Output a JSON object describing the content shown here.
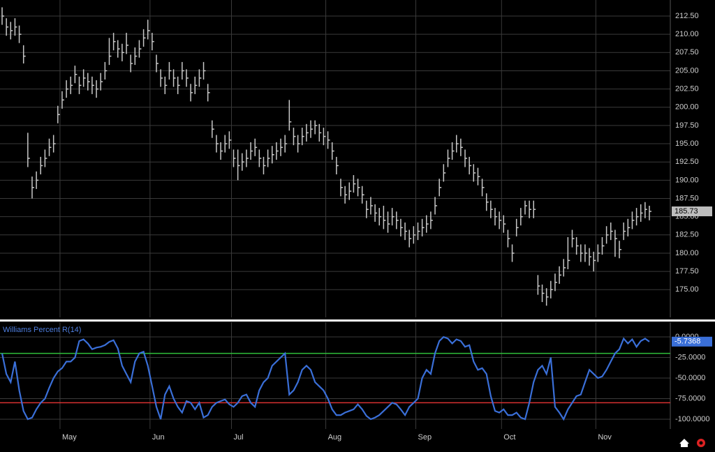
{
  "chart_data": [
    {
      "type": "ohlc",
      "color": "#c8c8c8",
      "categories": [
        null,
        null,
        null,
        null,
        null,
        null,
        null,
        null,
        null,
        null,
        null,
        null,
        null,
        null,
        "May",
        null,
        null,
        null,
        null,
        null,
        null,
        null,
        null,
        null,
        null,
        null,
        null,
        null,
        null,
        null,
        null,
        null,
        null,
        null,
        null,
        "Jun",
        null,
        null,
        null,
        null,
        null,
        null,
        null,
        null,
        null,
        null,
        null,
        null,
        null,
        null,
        null,
        null,
        null,
        null,
        "Jul",
        null,
        null,
        null,
        null,
        null,
        null,
        null,
        null,
        null,
        null,
        null,
        null,
        null,
        null,
        null,
        null,
        null,
        null,
        null,
        null,
        null,
        "Aug",
        null,
        null,
        null,
        null,
        null,
        null,
        null,
        null,
        null,
        null,
        null,
        null,
        null,
        null,
        null,
        null,
        null,
        null,
        null,
        null,
        "Sep",
        null,
        null,
        null,
        null,
        null,
        null,
        null,
        null,
        null,
        null,
        null,
        null,
        null,
        null,
        null,
        null,
        null,
        null,
        null,
        "Oct",
        null,
        null,
        null,
        null,
        null,
        null,
        null,
        null,
        null,
        null,
        null,
        null,
        null,
        null,
        null,
        null,
        null,
        null,
        null,
        null,
        null,
        "Nov",
        null,
        null,
        null,
        null,
        null,
        null,
        null,
        null,
        null,
        null,
        null,
        null
      ],
      "high": [
        213.7,
        212.2,
        211.7,
        212.2,
        211.2,
        208.5,
        196.5,
        190.5,
        191.2,
        193.2,
        194.2,
        195.7,
        196.2,
        200.2,
        202.2,
        203.7,
        204.2,
        205.7,
        204.2,
        205.2,
        204.7,
        204.2,
        203.7,
        204.7,
        206.2,
        209.5,
        210.2,
        209.2,
        208.7,
        210.2,
        207.2,
        208.2,
        209.2,
        210.7,
        212,
        210.2,
        207.2,
        205.2,
        204.2,
        206.2,
        205.2,
        204.2,
        206.2,
        205.2,
        203.2,
        204.2,
        205.2,
        206.2,
        203.2,
        198.2,
        196.2,
        195.2,
        196.2,
        196.7,
        194.2,
        194.2,
        193.7,
        194.2,
        195.2,
        195.7,
        194.2,
        193.2,
        194.2,
        194.7,
        195.2,
        195.7,
        196.2,
        201,
        197.2,
        196.2,
        197.2,
        197.7,
        198.2,
        198.2,
        197.7,
        197.2,
        196.7,
        195.2,
        193.2,
        190.2,
        189.2,
        189.7,
        190.7,
        190.2,
        189.2,
        187.2,
        187.7,
        186.7,
        186.2,
        186.5,
        185.7,
        186.2,
        185.7,
        184.7,
        184.2,
        183.2,
        183.7,
        184.2,
        184.7,
        185.2,
        185.7,
        187.7,
        190.2,
        192.2,
        194.2,
        195.2,
        196.2,
        195.7,
        194.2,
        193.2,
        192.2,
        191.7,
        190.2,
        188.2,
        187.2,
        186.2,
        185.7,
        185.2,
        183.2,
        181.2,
        184.7,
        186.2,
        187.2,
        187.2,
        187.2,
        177,
        175.7,
        175.2,
        176.2,
        177.2,
        178.2,
        179.2,
        182.2,
        183.2,
        182.2,
        181.2,
        181.2,
        180.7,
        180.2,
        181.2,
        182.2,
        183.7,
        184.2,
        183.2,
        181.7,
        184.2,
        184.7,
        185.7,
        186.2,
        186.7,
        187,
        186.5
      ],
      "low": [
        211.3,
        209.8,
        209.3,
        209.8,
        208.8,
        206,
        191.8,
        187.5,
        188.8,
        190.8,
        191.8,
        193.3,
        193.8,
        197.8,
        199.8,
        201.3,
        201.8,
        203.3,
        201.8,
        202.8,
        202.3,
        201.8,
        201.3,
        202.3,
        203.8,
        205.8,
        207.8,
        206.8,
        206.3,
        207.3,
        204.8,
        205.8,
        206.8,
        208.3,
        209.3,
        207.8,
        204.8,
        202.8,
        201.8,
        203.8,
        202.8,
        201.8,
        203.8,
        202.8,
        200.8,
        201.8,
        202.8,
        203.8,
        200.8,
        195.8,
        193.8,
        192.8,
        193.8,
        194.3,
        191.8,
        190,
        191.3,
        191.8,
        192.8,
        193.3,
        191.8,
        190.8,
        191.8,
        192.3,
        192.8,
        193.3,
        193.8,
        196.8,
        194.8,
        193.8,
        194.8,
        195.3,
        195.8,
        196.3,
        195.3,
        194.8,
        194.3,
        192.8,
        190.8,
        187.8,
        186.8,
        187.3,
        188.3,
        187.8,
        186.8,
        184.8,
        185.3,
        184.3,
        183.8,
        183.3,
        182.8,
        183.8,
        183.3,
        182.3,
        181.8,
        180.8,
        181.3,
        181.8,
        182.3,
        182.8,
        183.3,
        185.3,
        187.8,
        189.8,
        191.8,
        192.8,
        193.8,
        193.3,
        191.8,
        190.8,
        189.8,
        189.3,
        187.8,
        185.8,
        184.8,
        183.8,
        183.3,
        182.8,
        180.8,
        178.8,
        182.3,
        183.8,
        185.3,
        184.8,
        184.8,
        174.3,
        173.3,
        172.8,
        173.8,
        174.8,
        175.8,
        176.8,
        177.8,
        180.8,
        179.8,
        178.8,
        178.8,
        178.3,
        177.5,
        178.8,
        179.8,
        181.3,
        181.8,
        179.5,
        179.3,
        181.8,
        182.3,
        183.3,
        183.8,
        184.3,
        184.8,
        184.5
      ],
      "close": [
        212.5,
        211,
        210.5,
        211,
        210,
        207,
        193,
        189,
        190,
        192,
        193,
        194.5,
        195,
        199,
        201,
        202.5,
        203,
        204.5,
        203,
        204,
        203.5,
        203,
        202.5,
        203.5,
        205,
        207,
        209,
        208,
        207.5,
        208.5,
        206,
        207,
        208,
        209.5,
        210.5,
        209,
        206,
        204,
        203,
        205,
        204,
        203,
        205,
        204,
        202,
        203,
        204,
        205,
        202,
        197,
        195,
        194,
        195,
        195.5,
        193,
        192,
        192.5,
        193,
        194,
        194.5,
        193,
        192,
        193,
        193.5,
        194,
        194.5,
        195,
        198,
        196,
        195,
        196,
        196.5,
        197,
        197.5,
        196.5,
        196,
        195.5,
        194,
        192,
        189,
        188,
        188.5,
        189.5,
        189,
        188,
        186,
        186.5,
        185.5,
        185,
        184.5,
        184,
        185,
        184.5,
        183.5,
        183,
        182,
        182.5,
        183,
        183.5,
        184,
        184.5,
        186.5,
        189,
        191,
        193,
        194,
        195,
        194.5,
        193,
        192,
        191,
        190.5,
        189,
        187,
        186,
        185,
        184.5,
        184,
        182,
        180,
        183.5,
        185,
        186.5,
        186,
        186,
        175.5,
        174.5,
        174,
        175,
        176,
        177,
        178,
        179,
        182,
        181,
        180,
        180,
        179.5,
        179,
        180,
        181,
        182.5,
        183,
        182,
        180.5,
        183,
        183.5,
        184.5,
        185,
        185.5,
        186,
        185.73
      ],
      "ylim": [
        171.2,
        214.7
      ],
      "yticks": [
        {
          "value": 175,
          "label": "175.00"
        },
        {
          "value": 177.5,
          "label": "177.50"
        },
        {
          "value": 180,
          "label": "180.00"
        },
        {
          "value": 182.5,
          "label": "182.50"
        },
        {
          "value": 185,
          "label": "185.00"
        },
        {
          "value": 187.5,
          "label": "187.50"
        },
        {
          "value": 190,
          "label": "190.00"
        },
        {
          "value": 192.5,
          "label": "192.50"
        },
        {
          "value": 195,
          "label": "195.00"
        },
        {
          "value": 197.5,
          "label": "197.50"
        },
        {
          "value": 200,
          "label": "200.00"
        },
        {
          "value": 202.5,
          "label": "202.50"
        },
        {
          "value": 205,
          "label": "205.00"
        },
        {
          "value": 207.5,
          "label": "207.50"
        },
        {
          "value": 210,
          "label": "210.00"
        },
        {
          "value": 212.5,
          "label": "212.50"
        }
      ],
      "grid": true
    },
    {
      "type": "line",
      "title": "Williams Percent R(14)",
      "color": "#3a6fd8",
      "values": [
        -20,
        -45,
        -55,
        -30,
        -65,
        -90,
        -100,
        -98,
        -88,
        -80,
        -75,
        -62,
        -50,
        -42,
        -38,
        -30,
        -30,
        -25,
        -5,
        -3,
        -8,
        -15,
        -13,
        -12,
        -10,
        -6,
        -4,
        -14,
        -35,
        -45,
        -55,
        -30,
        -20,
        -18,
        -35,
        -60,
        -85,
        -100,
        -70,
        -60,
        -75,
        -85,
        -92,
        -78,
        -80,
        -88,
        -80,
        -98,
        -95,
        -85,
        -80,
        -78,
        -76,
        -82,
        -85,
        -80,
        -72,
        -70,
        -80,
        -85,
        -65,
        -55,
        -50,
        -35,
        -30,
        -25,
        -20,
        -70,
        -65,
        -55,
        -40,
        -35,
        -40,
        -55,
        -60,
        -65,
        -75,
        -88,
        -95,
        -95,
        -92,
        -90,
        -88,
        -82,
        -88,
        -96,
        -100,
        -98,
        -95,
        -90,
        -85,
        -80,
        -82,
        -88,
        -95,
        -85,
        -80,
        -75,
        -50,
        -40,
        -45,
        -20,
        -5,
        0,
        -2,
        -8,
        -3,
        -5,
        -12,
        -10,
        -30,
        -40,
        -38,
        -45,
        -72,
        -90,
        -92,
        -88,
        -95,
        -95,
        -92,
        -98,
        -100,
        -80,
        -55,
        -40,
        -35,
        -45,
        -25,
        -85,
        -92,
        -100,
        -88,
        -80,
        -72,
        -70,
        -55,
        -40,
        -45,
        -50,
        -48,
        -40,
        -30,
        -20,
        -15,
        -2,
        -8,
        -3,
        -12,
        -5,
        -2,
        -5.7368
      ],
      "levels": [
        {
          "value": -20,
          "color": "#2fbf3a"
        },
        {
          "value": -80,
          "color": "#d83030"
        }
      ],
      "ylim": [
        -111.9,
        17.8
      ],
      "yticks": [
        {
          "value": 0,
          "label": "0.0000"
        },
        {
          "value": -25,
          "label": "-25.0000"
        },
        {
          "value": -50,
          "label": "-50.0000"
        },
        {
          "value": -75,
          "label": "-75.0000"
        },
        {
          "value": -100,
          "label": "-100.0000"
        }
      ],
      "grid": true
    }
  ]
}
